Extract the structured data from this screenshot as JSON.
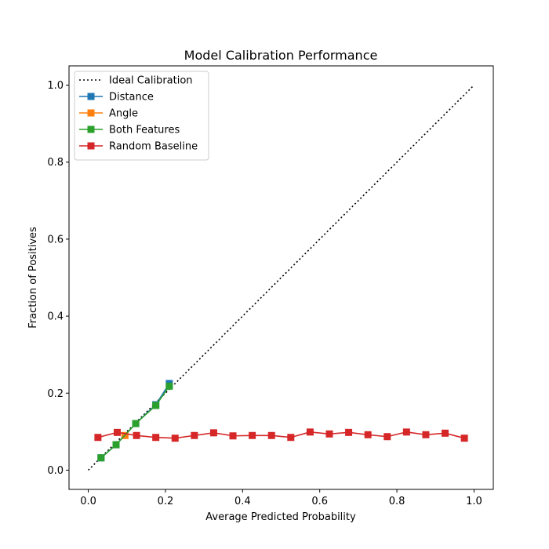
{
  "chart_data": {
    "type": "line",
    "title": "Model Calibration Performance",
    "xlabel": "Average Predicted Probability",
    "ylabel": "Fraction of Positives",
    "xlim": [
      -0.05,
      1.05
    ],
    "ylim": [
      -0.05,
      1.05
    ],
    "xticks": [
      "0.0",
      "0.2",
      "0.4",
      "0.6",
      "0.8",
      "1.0"
    ],
    "yticks": [
      "0.0",
      "0.2",
      "0.4",
      "0.6",
      "0.8",
      "1.0"
    ],
    "grid": false,
    "legend_position": "top-left",
    "series": [
      {
        "name": "Ideal Calibration",
        "style": "dotted",
        "marker": "none",
        "color": "#000000",
        "x": [
          0.0,
          1.0
        ],
        "y": [
          0.0,
          1.0
        ]
      },
      {
        "name": "Distance",
        "style": "solid",
        "marker": "square",
        "color": "#1f77b4",
        "x": [
          0.033,
          0.072,
          0.123,
          0.175,
          0.21
        ],
        "y": [
          0.032,
          0.066,
          0.121,
          0.17,
          0.225
        ]
      },
      {
        "name": "Angle",
        "style": "solid",
        "marker": "square",
        "color": "#ff7f0e",
        "x": [
          0.095
        ],
        "y": [
          0.09
        ]
      },
      {
        "name": "Both Features",
        "style": "solid",
        "marker": "square",
        "color": "#2ca02c",
        "x": [
          0.033,
          0.072,
          0.123,
          0.175,
          0.21
        ],
        "y": [
          0.032,
          0.066,
          0.121,
          0.168,
          0.218
        ]
      },
      {
        "name": "Random Baseline",
        "style": "solid",
        "marker": "square",
        "color": "#d62728",
        "x": [
          0.025,
          0.075,
          0.125,
          0.175,
          0.225,
          0.275,
          0.325,
          0.375,
          0.425,
          0.475,
          0.525,
          0.575,
          0.625,
          0.675,
          0.725,
          0.775,
          0.825,
          0.875,
          0.925,
          0.975
        ],
        "y": [
          0.085,
          0.098,
          0.09,
          0.085,
          0.083,
          0.09,
          0.097,
          0.089,
          0.09,
          0.09,
          0.085,
          0.099,
          0.094,
          0.098,
          0.092,
          0.087,
          0.099,
          0.092,
          0.096,
          0.083
        ]
      }
    ]
  }
}
